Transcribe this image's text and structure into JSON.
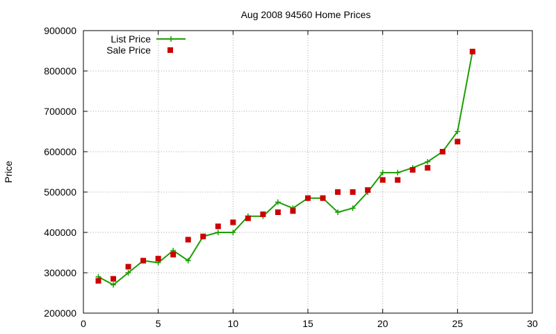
{
  "chart_data": {
    "type": "line",
    "title": "Aug 2008 94560 Home Prices",
    "xlabel": "",
    "ylabel": "Price",
    "xlim": [
      0,
      30
    ],
    "ylim": [
      200000,
      900000
    ],
    "x_ticks": [
      0,
      5,
      10,
      15,
      20,
      25,
      30
    ],
    "y_ticks": [
      200000,
      300000,
      400000,
      500000,
      600000,
      700000,
      800000,
      900000
    ],
    "grid": true,
    "legend_position": "top-left",
    "series": [
      {
        "name": "List Price",
        "style": "line-with-plus-markers",
        "color": "#1a9d00",
        "x": [
          1,
          2,
          3,
          4,
          5,
          6,
          7,
          8,
          9,
          10,
          11,
          12,
          13,
          14,
          15,
          16,
          17,
          18,
          19,
          20,
          21,
          22,
          23,
          24,
          25,
          26
        ],
        "y": [
          290000,
          270000,
          300000,
          330000,
          325000,
          355000,
          330000,
          390000,
          400000,
          400000,
          440000,
          440000,
          475000,
          460000,
          485000,
          485000,
          450000,
          460000,
          500000,
          548000,
          548000,
          560000,
          575000,
          600000,
          650000,
          848000
        ]
      },
      {
        "name": "Sale Price",
        "style": "square-markers",
        "color": "#cc0000",
        "x": [
          1,
          2,
          3,
          4,
          5,
          6,
          7,
          8,
          9,
          10,
          11,
          12,
          13,
          14,
          15,
          16,
          17,
          18,
          19,
          20,
          21,
          22,
          23,
          24,
          25,
          26
        ],
        "y": [
          280000,
          285000,
          315000,
          330000,
          335000,
          345000,
          382000,
          390000,
          415000,
          425000,
          435000,
          445000,
          450000,
          453000,
          485000,
          485000,
          500000,
          500000,
          505000,
          530000,
          530000,
          555000,
          560000,
          600000,
          625000,
          848000
        ]
      }
    ]
  }
}
